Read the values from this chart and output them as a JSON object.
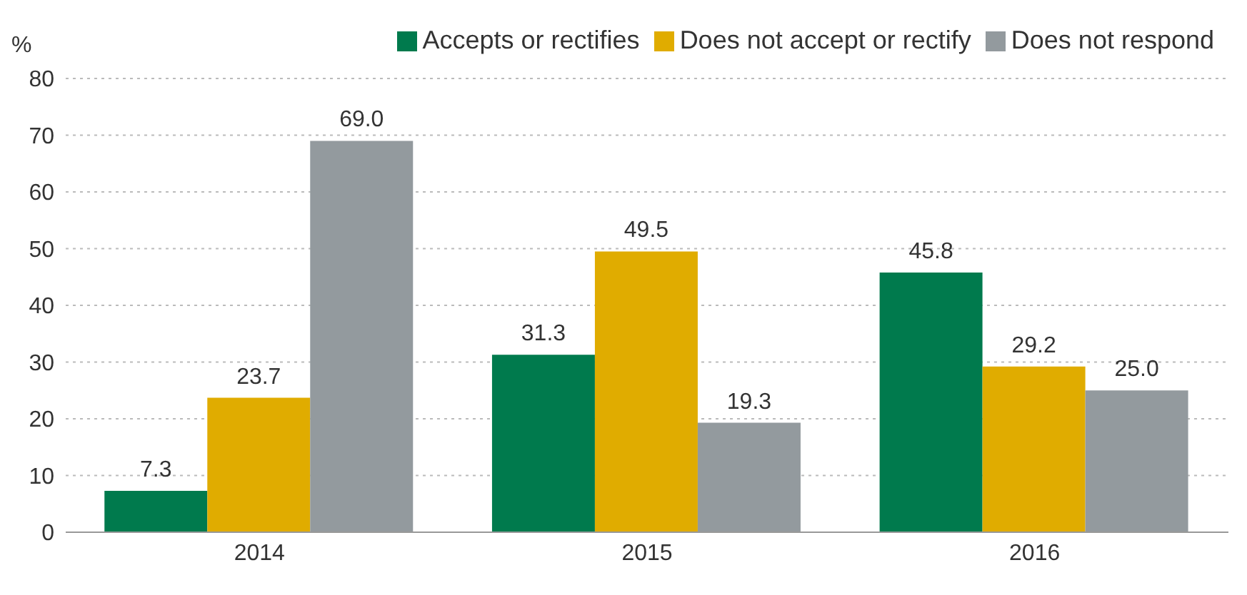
{
  "chart_data": {
    "type": "bar",
    "ylabel": "%",
    "categories": [
      "2014",
      "2015",
      "2016"
    ],
    "series": [
      {
        "name": "Accepts or rectifies",
        "color": "#007a4d",
        "values": [
          7.3,
          31.3,
          45.8
        ],
        "value_labels": [
          "7.3",
          "31.3",
          "45.8"
        ]
      },
      {
        "name": "Does not accept or rectify",
        "color": "#e0ac00",
        "values": [
          23.7,
          49.5,
          29.2
        ],
        "value_labels": [
          "23.7",
          "49.5",
          "29.2"
        ]
      },
      {
        "name": "Does not respond",
        "color": "#939a9e",
        "values": [
          69.0,
          19.3,
          25.0
        ],
        "value_labels": [
          "69.0",
          "19.3",
          "25.0"
        ]
      }
    ],
    "ylim": [
      0,
      80
    ],
    "yticks": [
      0,
      10,
      20,
      30,
      40,
      50,
      60,
      70,
      80
    ],
    "grid": "y",
    "legend": "top right"
  }
}
